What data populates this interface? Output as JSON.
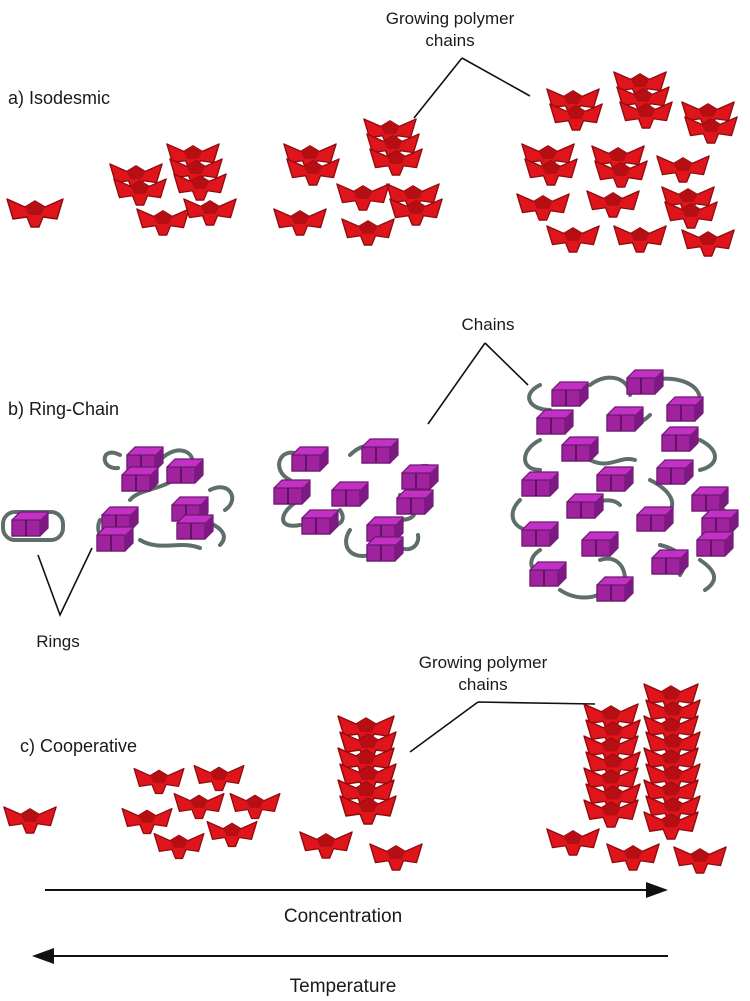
{
  "panels": {
    "a": {
      "label": "a) Isodesmic",
      "callout": [
        "Growing polymer",
        "chains"
      ],
      "unit_color": "#e0151b",
      "unit_shade": "#8c0b0f"
    },
    "b": {
      "label": "b) Ring-Chain",
      "callout": [
        "Chains"
      ],
      "rings_label": "Rings",
      "unit_color": "#c230c4",
      "unit_shade": "#6b1870",
      "linker_color": "#5e6e6a"
    },
    "c": {
      "label": "c) Cooperative",
      "callout": [
        "Growing polymer",
        "chains"
      ],
      "unit_color": "#e0151b",
      "unit_shade": "#8c0b0f"
    }
  },
  "axes": {
    "concentration": {
      "label": "Concentration",
      "direction": "right"
    },
    "temperature": {
      "label": "Temperature",
      "direction": "left"
    }
  }
}
